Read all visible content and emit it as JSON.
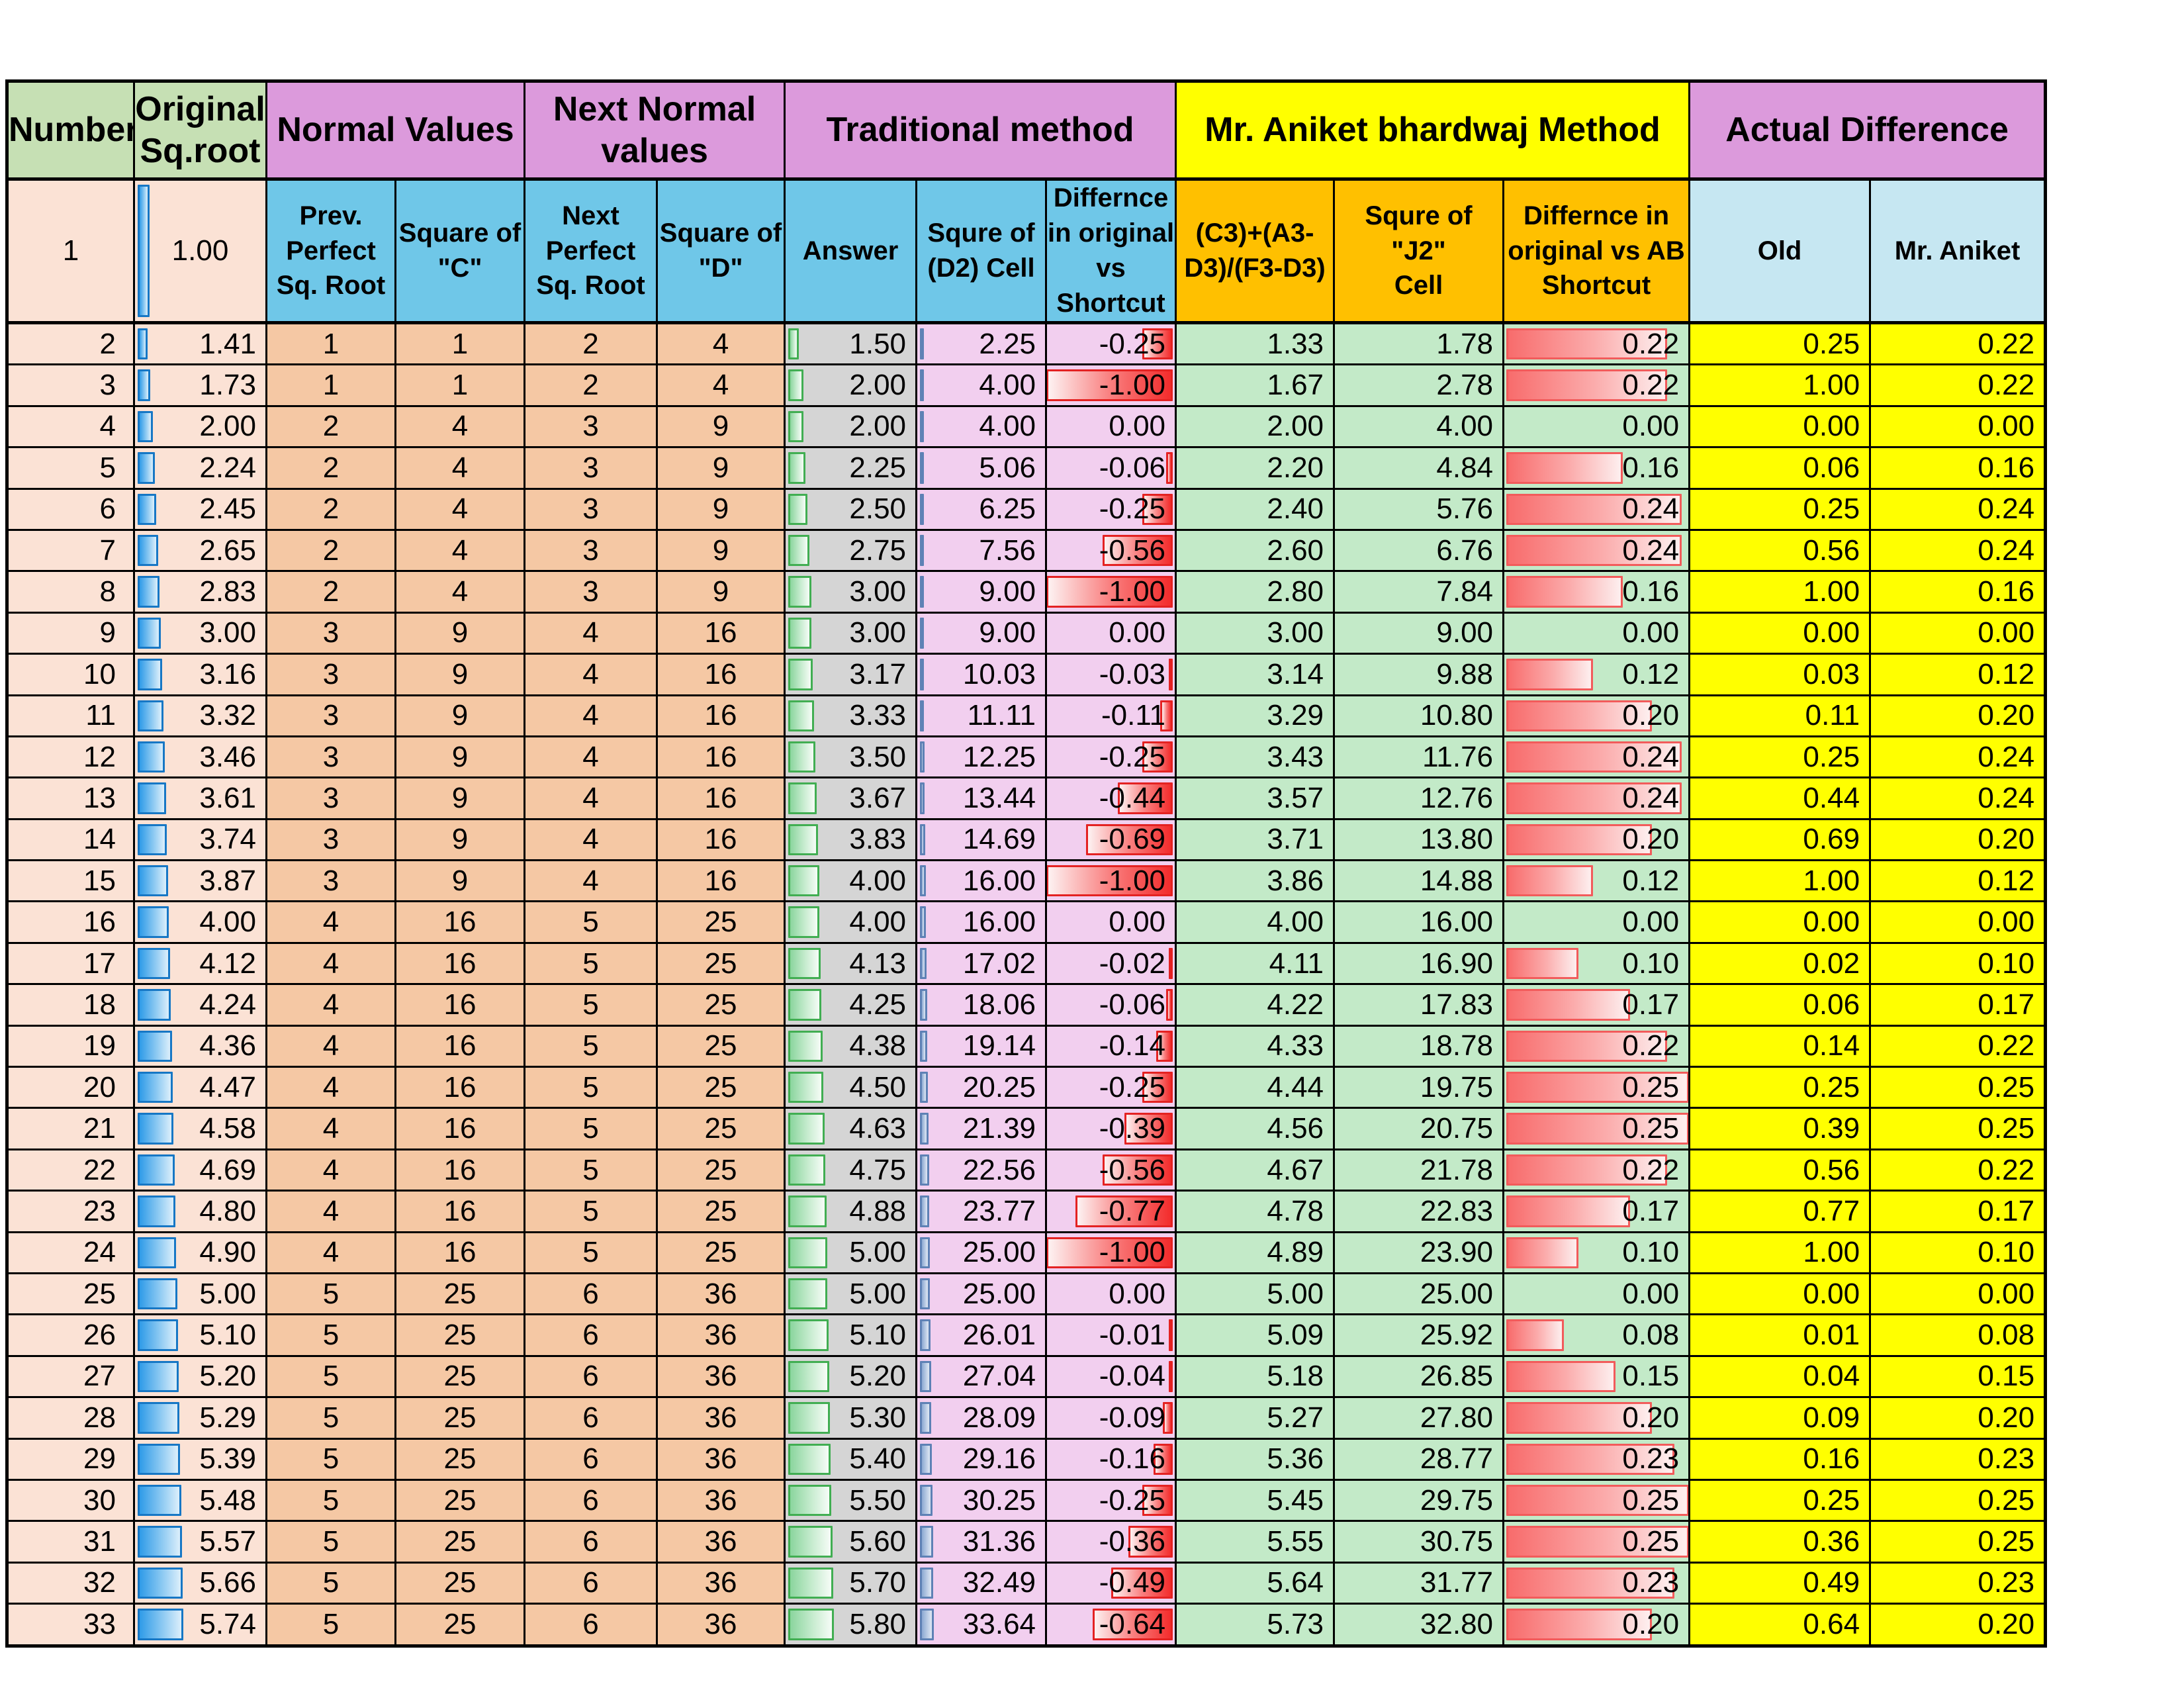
{
  "title": "Square root estimation comparison sheet",
  "colors": {
    "group_green": "#C6E0B4",
    "group_violet": "#DC9ADC",
    "group_yellow": "#FFFF00",
    "sub_skyblue": "#6FC7E8",
    "sub_orange": "#FFC000",
    "sub_paleblue": "#C6E7F2",
    "row_peach": "#FBE2D5",
    "row_salmon": "#F5C8A4",
    "row_gray": "#D5D5D5",
    "row_pinkviolet": "#F2CFEF",
    "row_lightgreen": "#C3EAC8",
    "row_yellow": "#FFFF00",
    "bar_blue_border": "#1677C5",
    "bar_green_border": "#41AE52",
    "bar_sliver_border": "#5E81B5",
    "bar_red_border": "#E42222"
  },
  "headers": {
    "number": "Number",
    "original_sqroot": "Original\nSq.root",
    "normal_values": "Normal Values",
    "next_normal_values": "Next Normal values",
    "traditional_method": "Traditional method",
    "aniket_method": "Mr. Aniket bhardwaj Method",
    "actual_difference": "Actual Difference",
    "sub": {
      "prev_perfect": "Prev.\nPerfect\nSq. Root",
      "square_c": "Square of\n\"C\"",
      "next_perfect": "Next\nPerfect\nSq. Root",
      "square_d": "Square of\n\"D\"",
      "answer": "Answer",
      "sqr_d2": "Squre of\n(D2) Cell",
      "diff_shortcut": "Differnce\nin original\nvs\nShortcut",
      "formula": "(C3)+(A3-\nD3)/(F3-D3)",
      "sqr_j2": "Squre of \"J2\"\nCell",
      "diff_ab": "Differnce in\noriginal vs AB\nShortcut",
      "old": "Old",
      "mr_aniket": "Mr. Aniket"
    }
  },
  "row1": {
    "number": "1",
    "sqroot": "1.00"
  },
  "rows": [
    {
      "n": "2",
      "sqrt": "1.41",
      "c": "1",
      "c2": "1",
      "d": "2",
      "d2": "4",
      "ans": "1.50",
      "ans2": "2.25",
      "diff": "-0.25",
      "ab": "1.33",
      "ab2": "1.78",
      "abdiff": "0.22",
      "old": "0.25",
      "mra": "0.22"
    },
    {
      "n": "3",
      "sqrt": "1.73",
      "c": "1",
      "c2": "1",
      "d": "2",
      "d2": "4",
      "ans": "2.00",
      "ans2": "4.00",
      "diff": "-1.00",
      "ab": "1.67",
      "ab2": "2.78",
      "abdiff": "0.22",
      "old": "1.00",
      "mra": "0.22"
    },
    {
      "n": "4",
      "sqrt": "2.00",
      "c": "2",
      "c2": "4",
      "d": "3",
      "d2": "9",
      "ans": "2.00",
      "ans2": "4.00",
      "diff": "0.00",
      "ab": "2.00",
      "ab2": "4.00",
      "abdiff": "0.00",
      "old": "0.00",
      "mra": "0.00"
    },
    {
      "n": "5",
      "sqrt": "2.24",
      "c": "2",
      "c2": "4",
      "d": "3",
      "d2": "9",
      "ans": "2.25",
      "ans2": "5.06",
      "diff": "-0.06",
      "ab": "2.20",
      "ab2": "4.84",
      "abdiff": "0.16",
      "old": "0.06",
      "mra": "0.16"
    },
    {
      "n": "6",
      "sqrt": "2.45",
      "c": "2",
      "c2": "4",
      "d": "3",
      "d2": "9",
      "ans": "2.50",
      "ans2": "6.25",
      "diff": "-0.25",
      "ab": "2.40",
      "ab2": "5.76",
      "abdiff": "0.24",
      "old": "0.25",
      "mra": "0.24"
    },
    {
      "n": "7",
      "sqrt": "2.65",
      "c": "2",
      "c2": "4",
      "d": "3",
      "d2": "9",
      "ans": "2.75",
      "ans2": "7.56",
      "diff": "-0.56",
      "ab": "2.60",
      "ab2": "6.76",
      "abdiff": "0.24",
      "old": "0.56",
      "mra": "0.24"
    },
    {
      "n": "8",
      "sqrt": "2.83",
      "c": "2",
      "c2": "4",
      "d": "3",
      "d2": "9",
      "ans": "3.00",
      "ans2": "9.00",
      "diff": "-1.00",
      "ab": "2.80",
      "ab2": "7.84",
      "abdiff": "0.16",
      "old": "1.00",
      "mra": "0.16"
    },
    {
      "n": "9",
      "sqrt": "3.00",
      "c": "3",
      "c2": "9",
      "d": "4",
      "d2": "16",
      "ans": "3.00",
      "ans2": "9.00",
      "diff": "0.00",
      "ab": "3.00",
      "ab2": "9.00",
      "abdiff": "0.00",
      "old": "0.00",
      "mra": "0.00"
    },
    {
      "n": "10",
      "sqrt": "3.16",
      "c": "3",
      "c2": "9",
      "d": "4",
      "d2": "16",
      "ans": "3.17",
      "ans2": "10.03",
      "diff": "-0.03",
      "ab": "3.14",
      "ab2": "9.88",
      "abdiff": "0.12",
      "old": "0.03",
      "mra": "0.12"
    },
    {
      "n": "11",
      "sqrt": "3.32",
      "c": "3",
      "c2": "9",
      "d": "4",
      "d2": "16",
      "ans": "3.33",
      "ans2": "11.11",
      "diff": "-0.11",
      "ab": "3.29",
      "ab2": "10.80",
      "abdiff": "0.20",
      "old": "0.11",
      "mra": "0.20"
    },
    {
      "n": "12",
      "sqrt": "3.46",
      "c": "3",
      "c2": "9",
      "d": "4",
      "d2": "16",
      "ans": "3.50",
      "ans2": "12.25",
      "diff": "-0.25",
      "ab": "3.43",
      "ab2": "11.76",
      "abdiff": "0.24",
      "old": "0.25",
      "mra": "0.24"
    },
    {
      "n": "13",
      "sqrt": "3.61",
      "c": "3",
      "c2": "9",
      "d": "4",
      "d2": "16",
      "ans": "3.67",
      "ans2": "13.44",
      "diff": "-0.44",
      "ab": "3.57",
      "ab2": "12.76",
      "abdiff": "0.24",
      "old": "0.44",
      "mra": "0.24"
    },
    {
      "n": "14",
      "sqrt": "3.74",
      "c": "3",
      "c2": "9",
      "d": "4",
      "d2": "16",
      "ans": "3.83",
      "ans2": "14.69",
      "diff": "-0.69",
      "ab": "3.71",
      "ab2": "13.80",
      "abdiff": "0.20",
      "old": "0.69",
      "mra": "0.20"
    },
    {
      "n": "15",
      "sqrt": "3.87",
      "c": "3",
      "c2": "9",
      "d": "4",
      "d2": "16",
      "ans": "4.00",
      "ans2": "16.00",
      "diff": "-1.00",
      "ab": "3.86",
      "ab2": "14.88",
      "abdiff": "0.12",
      "old": "1.00",
      "mra": "0.12"
    },
    {
      "n": "16",
      "sqrt": "4.00",
      "c": "4",
      "c2": "16",
      "d": "5",
      "d2": "25",
      "ans": "4.00",
      "ans2": "16.00",
      "diff": "0.00",
      "ab": "4.00",
      "ab2": "16.00",
      "abdiff": "0.00",
      "old": "0.00",
      "mra": "0.00"
    },
    {
      "n": "17",
      "sqrt": "4.12",
      "c": "4",
      "c2": "16",
      "d": "5",
      "d2": "25",
      "ans": "4.13",
      "ans2": "17.02",
      "diff": "-0.02",
      "ab": "4.11",
      "ab2": "16.90",
      "abdiff": "0.10",
      "old": "0.02",
      "mra": "0.10"
    },
    {
      "n": "18",
      "sqrt": "4.24",
      "c": "4",
      "c2": "16",
      "d": "5",
      "d2": "25",
      "ans": "4.25",
      "ans2": "18.06",
      "diff": "-0.06",
      "ab": "4.22",
      "ab2": "17.83",
      "abdiff": "0.17",
      "old": "0.06",
      "mra": "0.17"
    },
    {
      "n": "19",
      "sqrt": "4.36",
      "c": "4",
      "c2": "16",
      "d": "5",
      "d2": "25",
      "ans": "4.38",
      "ans2": "19.14",
      "diff": "-0.14",
      "ab": "4.33",
      "ab2": "18.78",
      "abdiff": "0.22",
      "old": "0.14",
      "mra": "0.22"
    },
    {
      "n": "20",
      "sqrt": "4.47",
      "c": "4",
      "c2": "16",
      "d": "5",
      "d2": "25",
      "ans": "4.50",
      "ans2": "20.25",
      "diff": "-0.25",
      "ab": "4.44",
      "ab2": "19.75",
      "abdiff": "0.25",
      "old": "0.25",
      "mra": "0.25"
    },
    {
      "n": "21",
      "sqrt": "4.58",
      "c": "4",
      "c2": "16",
      "d": "5",
      "d2": "25",
      "ans": "4.63",
      "ans2": "21.39",
      "diff": "-0.39",
      "ab": "4.56",
      "ab2": "20.75",
      "abdiff": "0.25",
      "old": "0.39",
      "mra": "0.25"
    },
    {
      "n": "22",
      "sqrt": "4.69",
      "c": "4",
      "c2": "16",
      "d": "5",
      "d2": "25",
      "ans": "4.75",
      "ans2": "22.56",
      "diff": "-0.56",
      "ab": "4.67",
      "ab2": "21.78",
      "abdiff": "0.22",
      "old": "0.56",
      "mra": "0.22"
    },
    {
      "n": "23",
      "sqrt": "4.80",
      "c": "4",
      "c2": "16",
      "d": "5",
      "d2": "25",
      "ans": "4.88",
      "ans2": "23.77",
      "diff": "-0.77",
      "ab": "4.78",
      "ab2": "22.83",
      "abdiff": "0.17",
      "old": "0.77",
      "mra": "0.17"
    },
    {
      "n": "24",
      "sqrt": "4.90",
      "c": "4",
      "c2": "16",
      "d": "5",
      "d2": "25",
      "ans": "5.00",
      "ans2": "25.00",
      "diff": "-1.00",
      "ab": "4.89",
      "ab2": "23.90",
      "abdiff": "0.10",
      "old": "1.00",
      "mra": "0.10"
    },
    {
      "n": "25",
      "sqrt": "5.00",
      "c": "5",
      "c2": "25",
      "d": "6",
      "d2": "36",
      "ans": "5.00",
      "ans2": "25.00",
      "diff": "0.00",
      "ab": "5.00",
      "ab2": "25.00",
      "abdiff": "0.00",
      "old": "0.00",
      "mra": "0.00"
    },
    {
      "n": "26",
      "sqrt": "5.10",
      "c": "5",
      "c2": "25",
      "d": "6",
      "d2": "36",
      "ans": "5.10",
      "ans2": "26.01",
      "diff": "-0.01",
      "ab": "5.09",
      "ab2": "25.92",
      "abdiff": "0.08",
      "old": "0.01",
      "mra": "0.08"
    },
    {
      "n": "27",
      "sqrt": "5.20",
      "c": "5",
      "c2": "25",
      "d": "6",
      "d2": "36",
      "ans": "5.20",
      "ans2": "27.04",
      "diff": "-0.04",
      "ab": "5.18",
      "ab2": "26.85",
      "abdiff": "0.15",
      "old": "0.04",
      "mra": "0.15"
    },
    {
      "n": "28",
      "sqrt": "5.29",
      "c": "5",
      "c2": "25",
      "d": "6",
      "d2": "36",
      "ans": "5.30",
      "ans2": "28.09",
      "diff": "-0.09",
      "ab": "5.27",
      "ab2": "27.80",
      "abdiff": "0.20",
      "old": "0.09",
      "mra": "0.20"
    },
    {
      "n": "29",
      "sqrt": "5.39",
      "c": "5",
      "c2": "25",
      "d": "6",
      "d2": "36",
      "ans": "5.40",
      "ans2": "29.16",
      "diff": "-0.16",
      "ab": "5.36",
      "ab2": "28.77",
      "abdiff": "0.23",
      "old": "0.16",
      "mra": "0.23"
    },
    {
      "n": "30",
      "sqrt": "5.48",
      "c": "5",
      "c2": "25",
      "d": "6",
      "d2": "36",
      "ans": "5.50",
      "ans2": "30.25",
      "diff": "-0.25",
      "ab": "5.45",
      "ab2": "29.75",
      "abdiff": "0.25",
      "old": "0.25",
      "mra": "0.25"
    },
    {
      "n": "31",
      "sqrt": "5.57",
      "c": "5",
      "c2": "25",
      "d": "6",
      "d2": "36",
      "ans": "5.60",
      "ans2": "31.36",
      "diff": "-0.36",
      "ab": "5.55",
      "ab2": "30.75",
      "abdiff": "0.25",
      "old": "0.36",
      "mra": "0.25"
    },
    {
      "n": "32",
      "sqrt": "5.66",
      "c": "5",
      "c2": "25",
      "d": "6",
      "d2": "36",
      "ans": "5.70",
      "ans2": "32.49",
      "diff": "-0.49",
      "ab": "5.64",
      "ab2": "31.77",
      "abdiff": "0.23",
      "old": "0.49",
      "mra": "0.23"
    },
    {
      "n": "33",
      "sqrt": "5.74",
      "c": "5",
      "c2": "25",
      "d": "6",
      "d2": "36",
      "ans": "5.80",
      "ans2": "33.64",
      "diff": "-0.64",
      "ab": "5.73",
      "ab2": "32.80",
      "abdiff": "0.20",
      "old": "0.64",
      "mra": "0.20"
    }
  ]
}
